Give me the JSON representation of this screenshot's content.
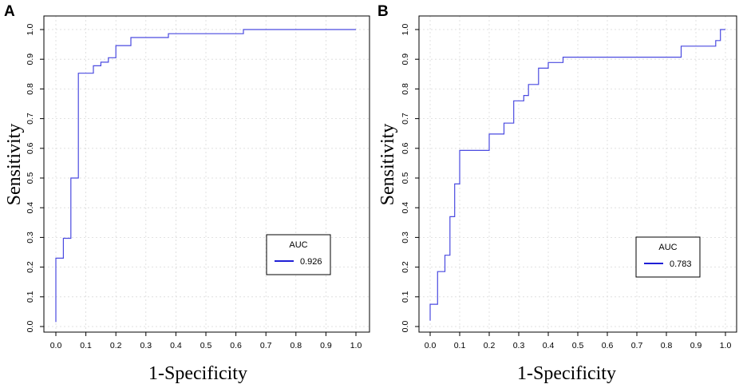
{
  "colors": {
    "curve": "#4a4ae0",
    "legend_line": "#1f1fd6"
  },
  "chart_data": [
    {
      "panel_label": "A",
      "type": "line",
      "xlabel": "1-Specificity",
      "ylabel": "Sensitivity",
      "xlim": [
        0,
        1
      ],
      "ylim": [
        0,
        1
      ],
      "x_ticks": [
        "0.0",
        "0.1",
        "0.2",
        "0.3",
        "0.4",
        "0.5",
        "0.6",
        "0.7",
        "0.8",
        "0.9",
        "1.0"
      ],
      "y_ticks": [
        "0.0",
        "0.1",
        "0.2",
        "0.3",
        "0.4",
        "0.5",
        "0.6",
        "0.7",
        "0.8",
        "0.9",
        "1.0"
      ],
      "grid": true,
      "legend": {
        "title": "AUC",
        "position": "bottom-right",
        "entries": [
          {
            "label": "0.926"
          }
        ]
      },
      "series": [
        {
          "name": "ROC",
          "x": [
            0.0,
            0.0,
            0.025,
            0.025,
            0.05,
            0.05,
            0.075,
            0.075,
            0.125,
            0.125,
            0.15,
            0.15,
            0.175,
            0.175,
            0.2,
            0.2,
            0.25,
            0.25,
            0.375,
            0.375,
            0.625,
            0.625,
            1.0
          ],
          "y": [
            0.015,
            0.23,
            0.23,
            0.297,
            0.297,
            0.5,
            0.5,
            0.853,
            0.853,
            0.878,
            0.878,
            0.89,
            0.89,
            0.905,
            0.905,
            0.946,
            0.946,
            0.973,
            0.973,
            0.986,
            0.986,
            1.0,
            1.0
          ]
        }
      ]
    },
    {
      "panel_label": "B",
      "type": "line",
      "xlabel": "1-Specificity",
      "ylabel": "Sensitivity",
      "xlim": [
        0,
        1
      ],
      "ylim": [
        0,
        1
      ],
      "x_ticks": [
        "0.0",
        "0.1",
        "0.2",
        "0.3",
        "0.4",
        "0.5",
        "0.6",
        "0.7",
        "0.8",
        "0.9",
        "1.0"
      ],
      "y_ticks": [
        "0.0",
        "0.1",
        "0.2",
        "0.3",
        "0.4",
        "0.5",
        "0.6",
        "0.7",
        "0.8",
        "0.9",
        "1.0"
      ],
      "grid": true,
      "legend": {
        "title": "AUC",
        "position": "bottom-right",
        "entries": [
          {
            "label": "0.783"
          }
        ]
      },
      "series": [
        {
          "name": "ROC",
          "x": [
            0.0,
            0.0,
            0.025,
            0.025,
            0.05,
            0.05,
            0.067,
            0.067,
            0.083,
            0.083,
            0.1,
            0.1,
            0.2,
            0.2,
            0.25,
            0.25,
            0.283,
            0.283,
            0.317,
            0.317,
            0.333,
            0.333,
            0.367,
            0.367,
            0.4,
            0.4,
            0.45,
            0.45,
            0.85,
            0.85,
            0.967,
            0.967,
            0.983,
            0.983,
            1.0
          ],
          "y": [
            0.02,
            0.075,
            0.075,
            0.185,
            0.185,
            0.24,
            0.24,
            0.37,
            0.37,
            0.48,
            0.48,
            0.593,
            0.593,
            0.648,
            0.648,
            0.685,
            0.685,
            0.76,
            0.76,
            0.778,
            0.778,
            0.815,
            0.815,
            0.87,
            0.87,
            0.889,
            0.889,
            0.907,
            0.907,
            0.944,
            0.944,
            0.963,
            0.963,
            1.0,
            1.0
          ]
        }
      ]
    }
  ]
}
